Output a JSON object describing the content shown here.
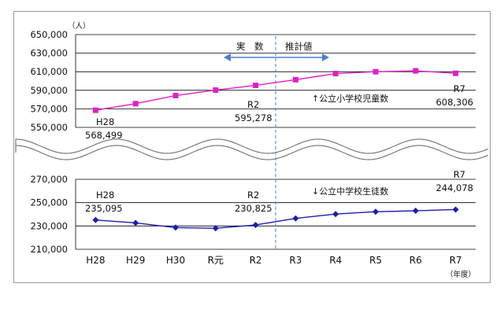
{
  "chart_data": [
    {
      "type": "line",
      "series": [
        {
          "name": "公立小学校児童数",
          "values": [
            568499,
            575600,
            584300,
            590200,
            595278,
            601400,
            608000,
            610000,
            611000,
            608306
          ],
          "color": "#e020c8",
          "marker": "square"
        }
      ],
      "categories": [
        "H28",
        "H29",
        "H30",
        "R元",
        "R2",
        "R3",
        "R4",
        "R5",
        "R6",
        "R7"
      ],
      "yticks": [
        "650,000",
        "630,000",
        "610,000",
        "590,000",
        "570,000",
        "550,000"
      ],
      "ylim": [
        550000,
        650000
      ],
      "unit": "（人）",
      "series_label": "↑公立小学校児童数",
      "annotations": [
        {
          "index": 0,
          "label": "H28",
          "value": "568,499"
        },
        {
          "index": 4,
          "label": "R2",
          "value": "595,278"
        },
        {
          "index": 9,
          "label": "R7",
          "value": "608,306"
        }
      ]
    },
    {
      "type": "line",
      "series": [
        {
          "name": "公立中学校生徒数",
          "values": [
            235095,
            232600,
            228600,
            228000,
            230825,
            236500,
            240200,
            242200,
            243000,
            244078
          ],
          "color": "#1c1cb0",
          "marker": "diamond"
        }
      ],
      "categories": [
        "H28",
        "H29",
        "H30",
        "R元",
        "R2",
        "R3",
        "R4",
        "R5",
        "R6",
        "R7"
      ],
      "yticks": [
        "270,000",
        "250,000",
        "230,000",
        "210,000"
      ],
      "ylim": [
        210000,
        270000
      ],
      "series_label": "↓公立中学校生徒数",
      "annotations": [
        {
          "index": 0,
          "label": "H28",
          "value": "235,095"
        },
        {
          "index": 4,
          "label": "R2",
          "value": "230,825"
        },
        {
          "index": 9,
          "label": "R7",
          "value": "244,078"
        }
      ]
    }
  ],
  "divider": {
    "after_index": 4,
    "left_label": "実　数",
    "right_label": "推計値"
  },
  "xunit": "（年度）",
  "colors": {
    "grid": "#000000",
    "divider": "#4a7fd0",
    "arrow": "#4a7fd0"
  }
}
